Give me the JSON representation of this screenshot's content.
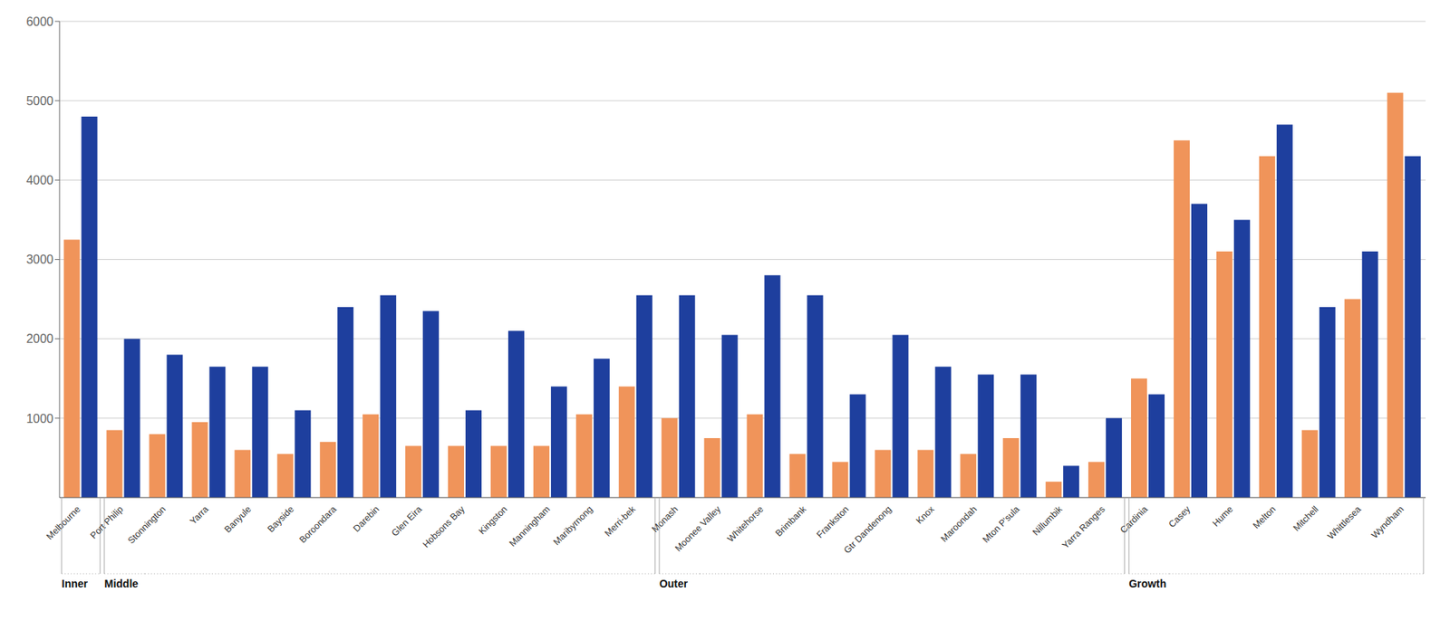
{
  "chart_data": {
    "type": "bar",
    "categories": [
      "Melbourne",
      "Port Philip",
      "Stonnington",
      "Yarra",
      "Banyule",
      "Bayside",
      "Boroondara",
      "Darebin",
      "Glen Eira",
      "Hobsons Bay",
      "Kingston",
      "Manningham",
      "Maribyrnong",
      "Merri-bek",
      "Monash",
      "Moonee Valley",
      "Whitehorse",
      "Brimbank",
      "Frankston",
      "Gtr Dandenong",
      "Knox",
      "Maroondah",
      "Mton P'sula",
      "Nillumbik",
      "Yarra Ranges",
      "Cardinia",
      "Casey",
      "Hume",
      "Melton",
      "Mitchell",
      "Whittlesea",
      "Wyndham"
    ],
    "series": [
      {
        "color": "#f0945a",
        "values": [
          3250,
          850,
          800,
          950,
          600,
          550,
          700,
          1050,
          650,
          650,
          650,
          650,
          1050,
          1400,
          1000,
          750,
          1050,
          550,
          450,
          600,
          600,
          550,
          750,
          200,
          450,
          1500,
          4500,
          3100,
          4300,
          850,
          2500,
          5100
        ]
      },
      {
        "color": "#1e3f9e",
        "values": [
          4800,
          2000,
          1800,
          1650,
          1650,
          1100,
          2400,
          2550,
          2350,
          1100,
          2100,
          1400,
          1750,
          2550,
          2550,
          2050,
          2800,
          2550,
          1300,
          2050,
          1650,
          1550,
          1550,
          400,
          1000,
          1300,
          3700,
          3500,
          4700,
          2400,
          3100,
          4300
        ]
      }
    ],
    "groups": [
      {
        "name": "Inner",
        "categories": [
          "Melbourne"
        ]
      },
      {
        "name": "Middle",
        "categories": [
          "Port Philip",
          "Stonnington",
          "Yarra",
          "Banyule",
          "Bayside",
          "Boroondara",
          "Darebin",
          "Glen Eira",
          "Hobsons Bay",
          "Kingston",
          "Manningham",
          "Maribyrnong",
          "Merri-bek"
        ]
      },
      {
        "name": "Outer",
        "categories": [
          "Monash",
          "Moonee Valley",
          "Whitehorse",
          "Brimbank",
          "Frankston",
          "Gtr Dandenong",
          "Knox",
          "Maroondah",
          "Mton P'sula",
          "Nillumbik",
          "Yarra Ranges"
        ]
      },
      {
        "name": "Growth",
        "categories": [
          "Cardinia",
          "Casey",
          "Hume",
          "Melton",
          "Mitchell",
          "Whittlesea",
          "Wyndham"
        ]
      }
    ],
    "ylim": [
      0,
      6000
    ],
    "yticks": [
      1000,
      2000,
      3000,
      4000,
      5000,
      6000
    ],
    "grid": true
  }
}
